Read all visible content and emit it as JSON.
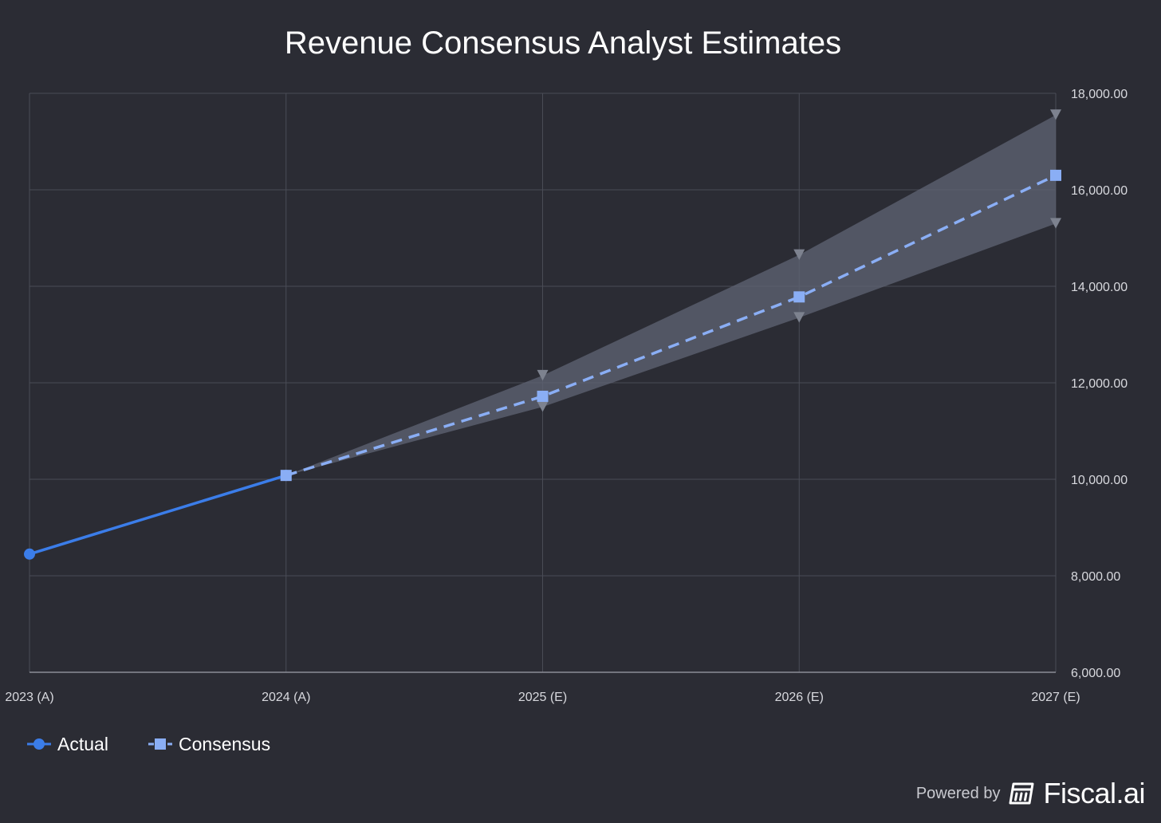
{
  "chart_data": {
    "type": "line",
    "title": "Revenue Consensus Analyst Estimates",
    "categories": [
      "2023 (A)",
      "2024 (A)",
      "2025 (E)",
      "2026 (E)",
      "2027 (E)"
    ],
    "y_ticks": [
      "6,000.00",
      "8,000.00",
      "10,000.00",
      "12,000.00",
      "14,000.00",
      "16,000.00",
      "18,000.00"
    ],
    "ylim": [
      6000,
      18000
    ],
    "y_axis_position": "right",
    "grid": true,
    "legend_position": "bottom-left",
    "series": [
      {
        "name": "Actual",
        "style": "solid",
        "marker": "circle",
        "color": "#3b7de9",
        "values": [
          8450,
          10080,
          null,
          null,
          null
        ]
      },
      {
        "name": "Consensus",
        "style": "dashed",
        "marker": "square",
        "color": "#8aaef5",
        "values": [
          null,
          10080,
          11720,
          13780,
          16300
        ]
      }
    ],
    "range_band": {
      "color": "#5d6372",
      "high": [
        null,
        10080,
        12150,
        14650,
        17550
      ],
      "low": [
        null,
        10080,
        11500,
        13350,
        15300
      ]
    }
  },
  "footer": {
    "powered_by": "Powered by",
    "brand": "Fiscal.ai"
  }
}
